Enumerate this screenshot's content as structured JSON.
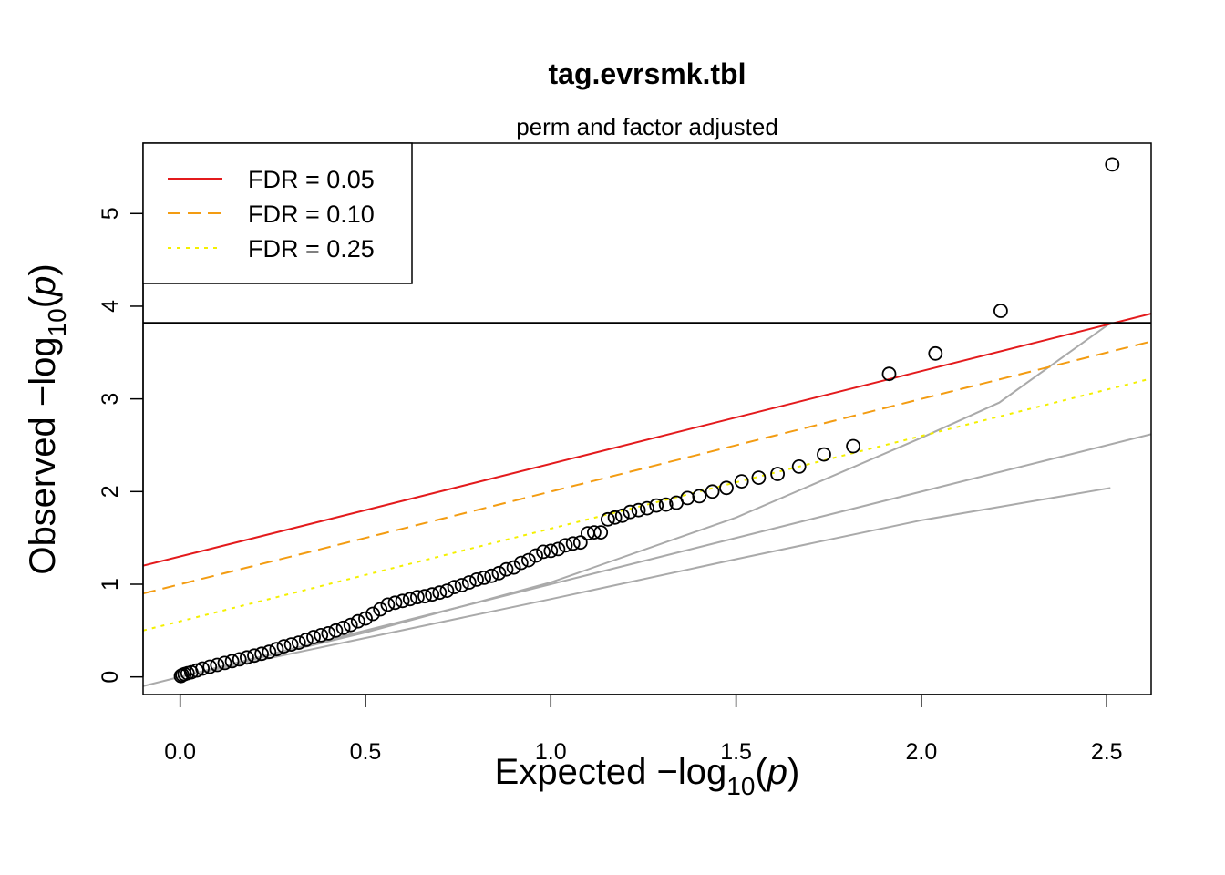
{
  "chart_data": {
    "type": "scatter",
    "title": "tag.evrsmk.tbl",
    "subtitle": "perm and factor adjusted",
    "xlabel": {
      "prefix": "Expected  ",
      "minus": "−",
      "log": "log",
      "sub": "10",
      "open": "(",
      "var": "p",
      "close": ")"
    },
    "ylabel": {
      "prefix": "Observed  ",
      "minus": "−",
      "log": "log",
      "sub": "10",
      "open": "(",
      "var": "p",
      "close": ")"
    },
    "xlim": [
      -0.1,
      2.62
    ],
    "ylim": [
      -0.19,
      5.76
    ],
    "x_ticks": [
      0.0,
      0.5,
      1.0,
      1.5,
      2.0,
      2.5
    ],
    "x_tick_labels": [
      "0.0",
      "0.5",
      "1.0",
      "1.5",
      "2.0",
      "2.5"
    ],
    "y_ticks": [
      0,
      1,
      2,
      3,
      4,
      5
    ],
    "y_tick_labels": [
      "0",
      "1",
      "2",
      "3",
      "4",
      "5"
    ],
    "grid": false,
    "legend": {
      "position": "top-left",
      "items": [
        {
          "label": "FDR = 0.05",
          "color": "#e31a1c",
          "dash": "solid"
        },
        {
          "label": "FDR = 0.10",
          "color": "#f39c12",
          "dash": "dashed"
        },
        {
          "label": "FDR = 0.25",
          "color": "#f4f000",
          "dash": "dotted"
        }
      ]
    },
    "hline": {
      "y": 3.82,
      "color": "#000000"
    },
    "fdr_lines": [
      {
        "label": "FDR = 0.05",
        "color": "#e31a1c",
        "dash": "solid",
        "points": [
          [
            -0.1,
            1.2
          ],
          [
            2.62,
            3.92
          ]
        ]
      },
      {
        "label": "FDR = 0.10",
        "color": "#f39c12",
        "dash": "dashed",
        "points": [
          [
            -0.1,
            0.9
          ],
          [
            2.62,
            3.62
          ]
        ]
      },
      {
        "label": "FDR = 0.25",
        "color": "#f4f000",
        "dash": "dotted",
        "points": [
          [
            -0.1,
            0.5
          ],
          [
            2.62,
            3.22
          ]
        ]
      }
    ],
    "reference_lines": [
      {
        "color": "#aaaaaa",
        "points": [
          [
            -0.1,
            -0.1
          ],
          [
            2.62,
            2.62
          ]
        ]
      },
      {
        "color": "#aaaaaa",
        "points": [
          [
            0,
            0
          ],
          [
            0.5,
            0.42
          ],
          [
            1.0,
            0.84
          ],
          [
            1.5,
            1.27
          ],
          [
            2.0,
            1.69
          ],
          [
            2.51,
            2.04
          ]
        ]
      },
      {
        "color": "#aaaaaa",
        "points": [
          [
            0,
            0
          ],
          [
            0.5,
            0.48
          ],
          [
            1.0,
            1.02
          ],
          [
            1.5,
            1.72
          ],
          [
            2.0,
            2.58
          ],
          [
            2.21,
            2.96
          ],
          [
            2.51,
            3.82
          ]
        ]
      }
    ],
    "marker_color": "#000000",
    "points": {
      "x": [
        2.515,
        2.214,
        2.038,
        1.913,
        1.816,
        1.737,
        1.67,
        1.612,
        1.561,
        1.515,
        1.474,
        1.436,
        1.401,
        1.369,
        1.339,
        1.311,
        1.285,
        1.26,
        1.237,
        1.214,
        1.193,
        1.173,
        1.154,
        1.135,
        1.117,
        1.1,
        1.08,
        1.06,
        1.04,
        1.02,
        1.0,
        0.98,
        0.96,
        0.94,
        0.92,
        0.9,
        0.88,
        0.86,
        0.84,
        0.82,
        0.8,
        0.78,
        0.76,
        0.74,
        0.72,
        0.7,
        0.68,
        0.66,
        0.64,
        0.62,
        0.6,
        0.58,
        0.56,
        0.54,
        0.52,
        0.5,
        0.48,
        0.46,
        0.44,
        0.42,
        0.4,
        0.38,
        0.36,
        0.34,
        0.32,
        0.3,
        0.28,
        0.26,
        0.24,
        0.22,
        0.2,
        0.18,
        0.16,
        0.14,
        0.12,
        0.1,
        0.08,
        0.06,
        0.045,
        0.03,
        0.02,
        0.012,
        0.006,
        0.002
      ],
      "y": [
        5.53,
        3.95,
        3.49,
        3.27,
        2.49,
        2.4,
        2.27,
        2.19,
        2.15,
        2.11,
        2.04,
        2.0,
        1.95,
        1.93,
        1.88,
        1.86,
        1.85,
        1.82,
        1.8,
        1.78,
        1.74,
        1.72,
        1.7,
        1.56,
        1.56,
        1.55,
        1.45,
        1.44,
        1.42,
        1.38,
        1.36,
        1.35,
        1.31,
        1.26,
        1.23,
        1.18,
        1.16,
        1.12,
        1.09,
        1.07,
        1.05,
        1.02,
        0.99,
        0.97,
        0.93,
        0.91,
        0.89,
        0.87,
        0.86,
        0.84,
        0.82,
        0.8,
        0.78,
        0.73,
        0.68,
        0.63,
        0.6,
        0.56,
        0.53,
        0.5,
        0.47,
        0.45,
        0.43,
        0.4,
        0.37,
        0.35,
        0.33,
        0.3,
        0.27,
        0.25,
        0.23,
        0.21,
        0.19,
        0.17,
        0.15,
        0.13,
        0.11,
        0.09,
        0.07,
        0.05,
        0.04,
        0.03,
        0.02,
        0.01
      ]
    }
  }
}
